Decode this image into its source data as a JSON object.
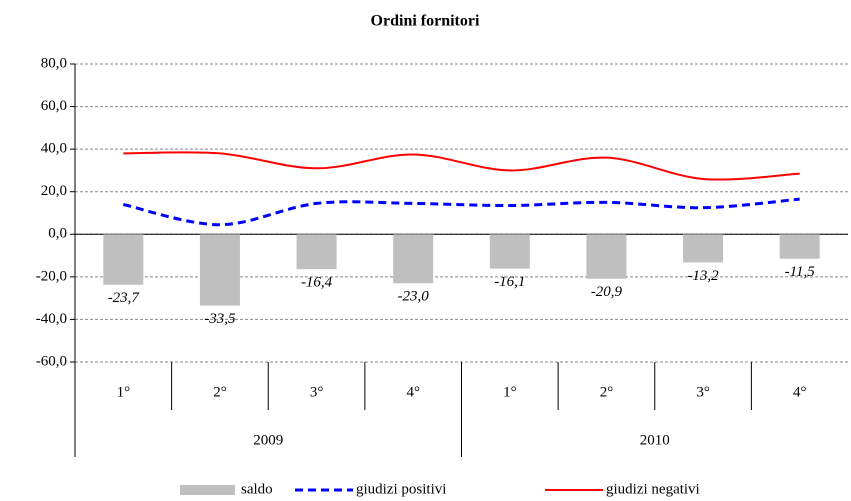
{
  "chart_data": {
    "type": "bar-line",
    "title": "Ordini fornitori",
    "categories": [
      "1°",
      "2°",
      "3°",
      "4°",
      "1°",
      "2°",
      "3°",
      "4°"
    ],
    "x_groups": [
      "2009",
      "2010"
    ],
    "series": [
      {
        "name": "saldo",
        "type": "bar",
        "color": "#bfbfbf",
        "values": [
          -23.7,
          -33.5,
          -16.4,
          -23.0,
          -16.1,
          -20.9,
          -13.2,
          -11.5
        ],
        "value_labels": [
          "-23,7",
          "-33,5",
          "-16,4",
          "-23,0",
          "-16,1",
          "-20,9",
          "-13,2",
          "-11,5"
        ]
      },
      {
        "name": "giudizi positivi",
        "type": "line",
        "color": "#0000ff",
        "dashed": true,
        "values": [
          14,
          4.5,
          14.5,
          14.5,
          13.5,
          15,
          12.5,
          16.5
        ]
      },
      {
        "name": "giudizi negativi",
        "type": "line",
        "color": "#ff0000",
        "dashed": false,
        "values": [
          38,
          38,
          31,
          37.5,
          30,
          36,
          26,
          28.5
        ]
      }
    ],
    "ylim": [
      -60,
      80
    ],
    "yticks": [
      {
        "value": -60,
        "label": "-60,0"
      },
      {
        "value": -40,
        "label": "-40,0"
      },
      {
        "value": -20,
        "label": "-20,0"
      },
      {
        "value": 0,
        "label": "0,0"
      },
      {
        "value": 20,
        "label": "20,0"
      },
      {
        "value": 40,
        "label": "40,0"
      },
      {
        "value": 60,
        "label": "60,0"
      },
      {
        "value": 80,
        "label": "80,0"
      }
    ],
    "grid": true,
    "smooth": true,
    "legend": "bottom"
  }
}
